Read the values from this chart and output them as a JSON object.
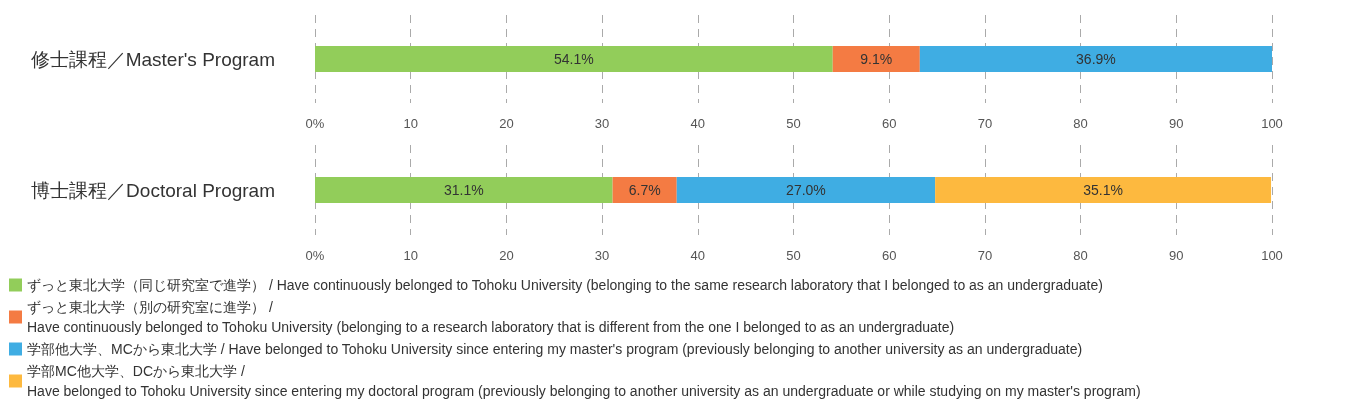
{
  "chart_data": [
    {
      "type": "bar",
      "orientation": "horizontal",
      "stacked": true,
      "categories": [
        "修士課程／Master's Program"
      ],
      "xlim": [
        0,
        100
      ],
      "xticks": [
        {
          "value": 0,
          "label": "0%"
        },
        10,
        20,
        30,
        40,
        50,
        60,
        70,
        80,
        90,
        100
      ],
      "grid": "x",
      "legend": false,
      "series": [
        {
          "color": "#92cd5a",
          "values": [
            54.1
          ],
          "value_labels": [
            "54.1%"
          ]
        },
        {
          "color": "#f47b43",
          "values": [
            9.1
          ],
          "value_labels": [
            "9.1%"
          ]
        },
        {
          "color": "#3fade3",
          "values": [
            36.9
          ],
          "value_labels": [
            "36.9%"
          ]
        }
      ]
    },
    {
      "type": "bar",
      "orientation": "horizontal",
      "stacked": true,
      "categories": [
        "博士課程／Doctoral Program"
      ],
      "xlim": [
        0,
        100
      ],
      "xticks": [
        {
          "value": 0,
          "label": "0%"
        },
        10,
        20,
        30,
        40,
        50,
        60,
        70,
        80,
        90,
        100
      ],
      "grid": "x",
      "legend": "bottom",
      "series": [
        {
          "name": "ずっと東北大学（同じ研究室で進学） / Have continuously belonged to Tohoku University (belonging to the same research laboratory that I belonged to as an undergraduate)",
          "color": "#92cd5a",
          "values": [
            31.1
          ],
          "value_labels": [
            "31.1%"
          ]
        },
        {
          "name": "ずっと東北大学（別の研究室に進学） /\nHave continuously belonged to Tohoku University (belonging to a research laboratory that is different from the one I belonged to as an undergraduate)",
          "color": "#f47b43",
          "values": [
            6.7
          ],
          "value_labels": [
            "6.7%"
          ]
        },
        {
          "name": "学部他大学、MCから東北大学 / Have belonged to Tohoku University since entering my master's program (previously belonging to another university as an undergraduate)",
          "color": "#3fade3",
          "values": [
            27.0
          ],
          "value_labels": [
            "27.0%"
          ]
        },
        {
          "name": "学部MC他大学、DCから東北大学 /\nHave belonged to Tohoku University since entering my doctoral program (previously belonging to another university as an undergraduate or while studying on my master's program)",
          "color": "#fdb93f",
          "values": [
            35.1
          ],
          "value_labels": [
            "35.1%"
          ]
        }
      ]
    }
  ]
}
